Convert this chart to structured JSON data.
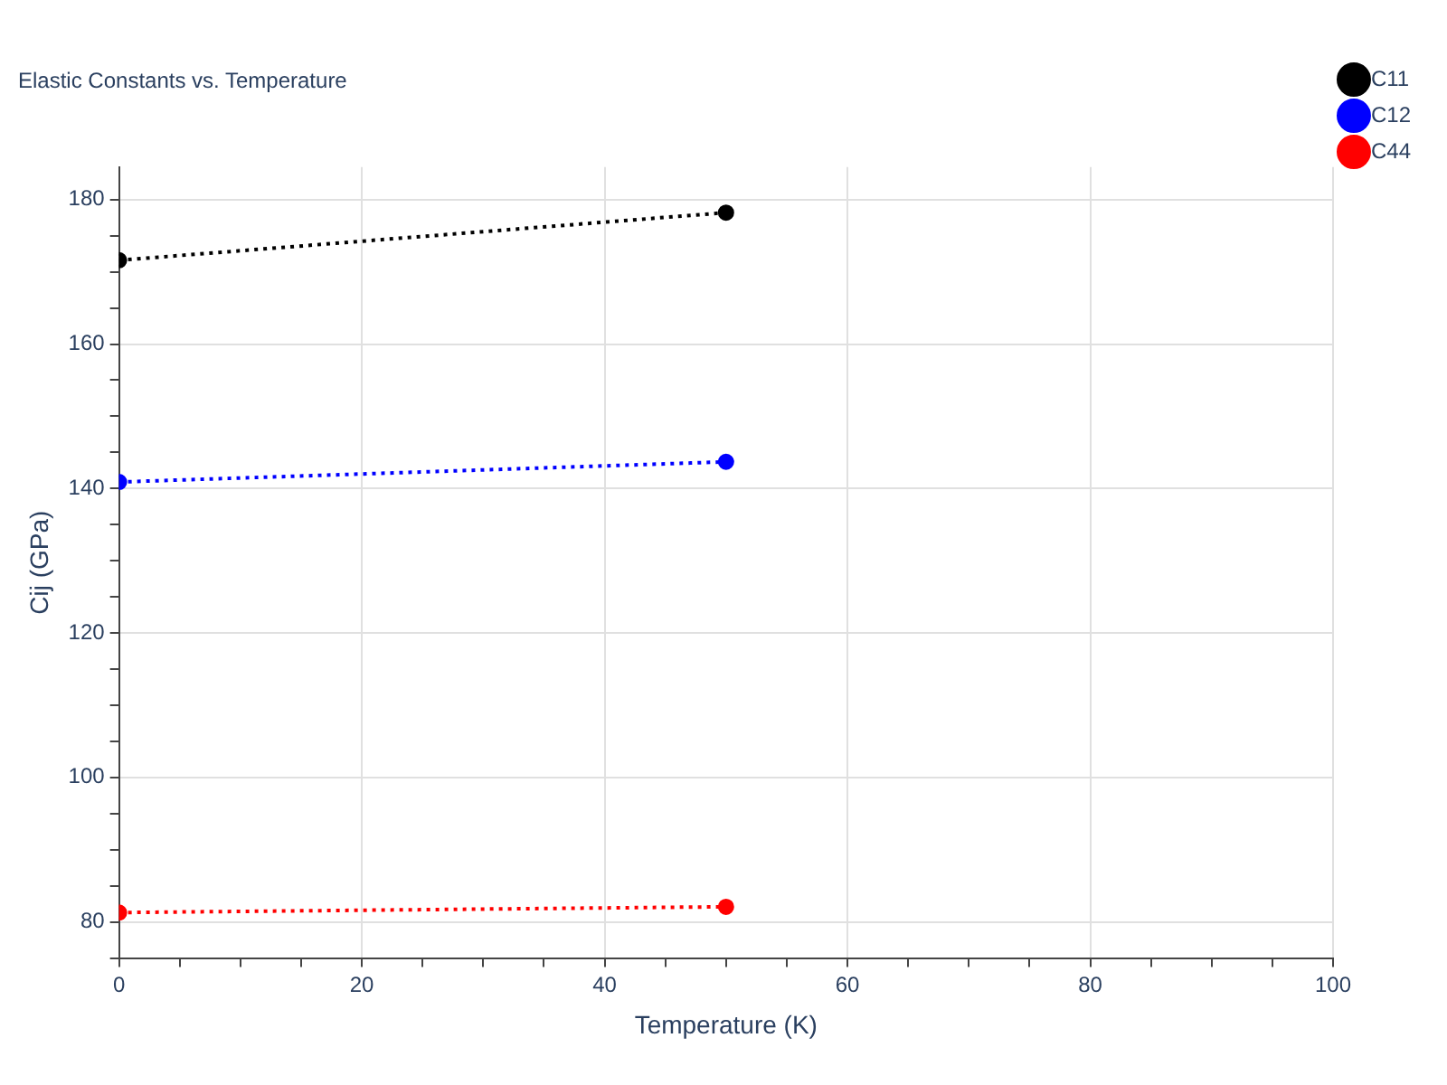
{
  "chart_data": {
    "type": "line",
    "title": "Elastic Constants vs. Temperature",
    "xlabel": "Temperature (K)",
    "ylabel": "Cij (GPa)",
    "x": [
      0,
      50
    ],
    "series": [
      {
        "name": "C11",
        "color": "#000000",
        "values": [
          171.6,
          178.2
        ]
      },
      {
        "name": "C12",
        "color": "#0000ff",
        "values": [
          140.9,
          143.7
        ]
      },
      {
        "name": "C44",
        "color": "#ff0000",
        "values": [
          81.3,
          82.1
        ]
      }
    ],
    "xlim": [
      0,
      100
    ],
    "xticks": [
      0,
      {
        "value": 5,
        "label": null
      },
      {
        "value": 10,
        "label": null
      },
      {
        "value": 15,
        "label": null
      },
      20,
      {
        "value": 25,
        "label": null
      },
      {
        "value": 30,
        "label": null
      },
      {
        "value": 35,
        "label": null
      },
      40,
      {
        "value": 45,
        "label": null
      },
      {
        "value": 50,
        "label": null
      },
      {
        "value": 55,
        "label": null
      },
      60,
      {
        "value": 65,
        "label": null
      },
      {
        "value": 70,
        "label": null
      },
      {
        "value": 75,
        "label": null
      },
      80,
      {
        "value": 85,
        "label": null
      },
      {
        "value": 90,
        "label": null
      },
      {
        "value": 95,
        "label": null
      },
      100
    ],
    "ylim": [
      75,
      184.5
    ],
    "yticks": [
      {
        "value": 75,
        "label": null
      },
      80,
      {
        "value": 85,
        "label": null
      },
      {
        "value": 90,
        "label": null
      },
      {
        "value": 95,
        "label": null
      },
      100,
      {
        "value": 105,
        "label": null
      },
      {
        "value": 110,
        "label": null
      },
      {
        "value": 115,
        "label": null
      },
      120,
      {
        "value": 125,
        "label": null
      },
      {
        "value": 130,
        "label": null
      },
      {
        "value": 135,
        "label": null
      },
      140,
      {
        "value": 145,
        "label": null
      },
      {
        "value": 150,
        "label": null
      },
      {
        "value": 155,
        "label": null
      },
      160,
      {
        "value": 165,
        "label": null
      },
      {
        "value": 170,
        "label": null
      },
      {
        "value": 175,
        "label": null
      },
      180
    ],
    "grid": true,
    "legend": "top right",
    "marker": "circle",
    "line_style": "dotted"
  }
}
